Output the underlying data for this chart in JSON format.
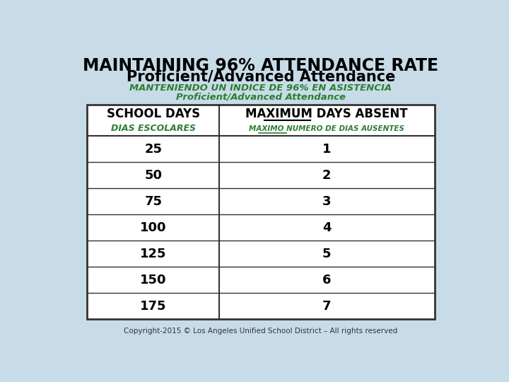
{
  "title_line1": "MAINTAINING 96% ATTENDANCE RATE",
  "title_line2": "Proficient/Advanced Attendance",
  "subtitle_line1": "MANTENIENDO UN INDICE DE 96% EN ASISTENCIA",
  "subtitle_line2": "Proficient/Advanced Attendance",
  "col1_header": "SCHOOL DAYS",
  "col1_subheader": "DIAS ESCOLARES",
  "col2_header_full": "MAXIMUM DAYS ABSENT",
  "col2_subheader_full": "MAXIMO NUMERO DE DIAS AUSENTES",
  "school_days": [
    25,
    50,
    75,
    100,
    125,
    150,
    175
  ],
  "max_absent": [
    1,
    2,
    3,
    4,
    5,
    6,
    7
  ],
  "copyright": "Copyright-2015 © Los Angeles Unified School District – All rights reserved",
  "bg_color": "#c8dce8",
  "table_bg": "#ffffff",
  "title_color": "#000000",
  "green_color": "#2e7d32",
  "table_border_color": "#333333",
  "data_color": "#000000"
}
